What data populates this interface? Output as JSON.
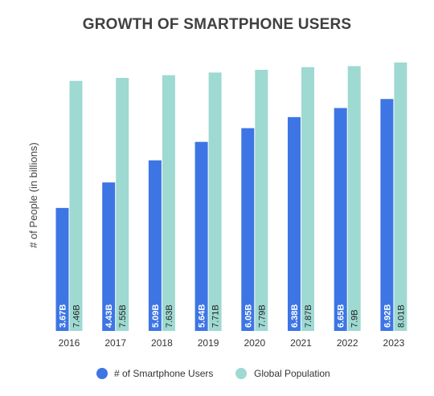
{
  "chart_data": {
    "type": "bar",
    "title": "GROWTH OF SMARTPHONE USERS",
    "xlabel": "",
    "ylabel": "# of People (in billions)",
    "ylim": [
      0,
      8.1
    ],
    "grid": false,
    "legend_position": "bottom",
    "categories": [
      "2016",
      "2017",
      "2018",
      "2019",
      "2020",
      "2021",
      "2022",
      "2023"
    ],
    "series": [
      {
        "name": "# of Smartphone Users",
        "color": "#3D75E4",
        "values": [
          3.67,
          4.43,
          5.09,
          5.64,
          6.05,
          6.38,
          6.65,
          6.92
        ],
        "labels": [
          "3.67B",
          "4.43B",
          "5.09B",
          "5.64B",
          "6.05B",
          "6.38B",
          "6.65B",
          "6.92B"
        ]
      },
      {
        "name": "Global Population",
        "color": "#9ED9D2",
        "values": [
          7.46,
          7.55,
          7.63,
          7.71,
          7.79,
          7.87,
          7.9,
          8.01
        ],
        "labels": [
          "7.46B",
          "7.55B",
          "7.63B",
          "7.71B",
          "7.79B",
          "7.87B",
          "7.9B",
          "8.01B"
        ]
      }
    ]
  }
}
